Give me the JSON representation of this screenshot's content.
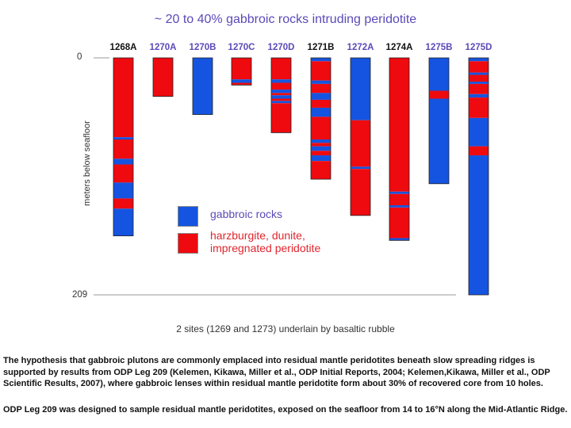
{
  "title": "~ 20 to 40% gabbroic rocks intruding peridotite",
  "y_axis": {
    "title": "meters below seafloor",
    "top_label": "0",
    "bottom_label": "209",
    "min": 0,
    "max": 209
  },
  "colors": {
    "gabbro": "#1554e0",
    "peridotite": "#ee0a0f",
    "purple_label": "#5a4ab8",
    "black_label": "#111111"
  },
  "holes": [
    {
      "name": "1268A",
      "label_color": "#111111",
      "depth": 157,
      "segments": [
        {
          "t": "p",
          "from": 0,
          "to": 70
        },
        {
          "t": "g",
          "from": 70,
          "to": 72
        },
        {
          "t": "p",
          "from": 72,
          "to": 89
        },
        {
          "t": "g",
          "from": 89,
          "to": 94
        },
        {
          "t": "p",
          "from": 94,
          "to": 110
        },
        {
          "t": "g",
          "from": 110,
          "to": 124
        },
        {
          "t": "p",
          "from": 124,
          "to": 133
        },
        {
          "t": "g",
          "from": 133,
          "to": 157
        }
      ]
    },
    {
      "name": "1270A",
      "label_color": "#5a4ab8",
      "depth": 34,
      "segments": [
        {
          "t": "p",
          "from": 0,
          "to": 34
        }
      ]
    },
    {
      "name": "1270B",
      "label_color": "#5a4ab8",
      "depth": 50,
      "segments": [
        {
          "t": "g",
          "from": 0,
          "to": 50
        }
      ]
    },
    {
      "name": "1270C",
      "label_color": "#5a4ab8",
      "depth": 24,
      "segments": [
        {
          "t": "p",
          "from": 0,
          "to": 19
        },
        {
          "t": "g",
          "from": 19,
          "to": 22
        },
        {
          "t": "p",
          "from": 22,
          "to": 24
        }
      ]
    },
    {
      "name": "1270D",
      "label_color": "#5a4ab8",
      "depth": 66,
      "segments": [
        {
          "t": "p",
          "from": 0,
          "to": 19
        },
        {
          "t": "g",
          "from": 19,
          "to": 22
        },
        {
          "t": "p",
          "from": 22,
          "to": 28
        },
        {
          "t": "g",
          "from": 28,
          "to": 31
        },
        {
          "t": "p",
          "from": 31,
          "to": 33
        },
        {
          "t": "g",
          "from": 33,
          "to": 36
        },
        {
          "t": "p",
          "from": 36,
          "to": 38
        },
        {
          "t": "g",
          "from": 38,
          "to": 40
        },
        {
          "t": "p",
          "from": 40,
          "to": 66
        }
      ]
    },
    {
      "name": "1271B",
      "label_color": "#111111",
      "depth": 107,
      "segments": [
        {
          "t": "g",
          "from": 0,
          "to": 3
        },
        {
          "t": "p",
          "from": 3,
          "to": 20
        },
        {
          "t": "g",
          "from": 20,
          "to": 23
        },
        {
          "t": "p",
          "from": 23,
          "to": 31
        },
        {
          "t": "g",
          "from": 31,
          "to": 37
        },
        {
          "t": "p",
          "from": 37,
          "to": 44
        },
        {
          "t": "g",
          "from": 44,
          "to": 52
        },
        {
          "t": "p",
          "from": 52,
          "to": 72
        },
        {
          "t": "g",
          "from": 72,
          "to": 75
        },
        {
          "t": "p",
          "from": 75,
          "to": 78
        },
        {
          "t": "g",
          "from": 78,
          "to": 82
        },
        {
          "t": "p",
          "from": 82,
          "to": 86
        },
        {
          "t": "g",
          "from": 86,
          "to": 91
        },
        {
          "t": "p",
          "from": 91,
          "to": 107
        }
      ]
    },
    {
      "name": "1272A",
      "label_color": "#5a4ab8",
      "depth": 139,
      "segments": [
        {
          "t": "g",
          "from": 0,
          "to": 55
        },
        {
          "t": "p",
          "from": 55,
          "to": 96
        },
        {
          "t": "g",
          "from": 96,
          "to": 98
        },
        {
          "t": "p",
          "from": 98,
          "to": 139
        }
      ]
    },
    {
      "name": "1274A",
      "label_color": "#111111",
      "depth": 161,
      "segments": [
        {
          "t": "p",
          "from": 0,
          "to": 118
        },
        {
          "t": "g",
          "from": 118,
          "to": 120
        },
        {
          "t": "p",
          "from": 120,
          "to": 130
        },
        {
          "t": "g",
          "from": 130,
          "to": 132
        },
        {
          "t": "p",
          "from": 132,
          "to": 159
        },
        {
          "t": "g",
          "from": 159,
          "to": 161
        }
      ]
    },
    {
      "name": "1275B",
      "label_color": "#5a4ab8",
      "depth": 111,
      "segments": [
        {
          "t": "g",
          "from": 0,
          "to": 29
        },
        {
          "t": "p",
          "from": 29,
          "to": 36
        },
        {
          "t": "g",
          "from": 36,
          "to": 111
        }
      ]
    },
    {
      "name": "1275D",
      "label_color": "#5a4ab8",
      "depth": 209,
      "segments": [
        {
          "t": "g",
          "from": 0,
          "to": 3
        },
        {
          "t": "p",
          "from": 3,
          "to": 13
        },
        {
          "t": "g",
          "from": 13,
          "to": 15
        },
        {
          "t": "p",
          "from": 15,
          "to": 21
        },
        {
          "t": "g",
          "from": 21,
          "to": 23
        },
        {
          "t": "p",
          "from": 23,
          "to": 32
        },
        {
          "t": "g",
          "from": 32,
          "to": 35
        },
        {
          "t": "p",
          "from": 35,
          "to": 53
        },
        {
          "t": "g",
          "from": 53,
          "to": 78
        },
        {
          "t": "p",
          "from": 78,
          "to": 86
        },
        {
          "t": "g",
          "from": 86,
          "to": 209
        }
      ]
    }
  ],
  "legend": {
    "gabbro_label": "gabbroic rocks",
    "peridotite_label_line1": "harzburgite, dunite,",
    "peridotite_label_line2": "impregnated peridotite"
  },
  "footnote": "2 sites (1269 and 1273) underlain by basaltic rubble",
  "caption": {
    "paragraph1": "The hypothesis that gabbroic plutons are commonly emplaced into residual mantle peridotites beneath slow spreading ridges is supported by results from ODP Leg 209 (Kelemen, Kikawa, Miller et al., ODP Initial Reports, 2004; Kelemen,Kikawa, Miller et al., ODP Scientific Results, 2007), where gabbroic lenses within residual mantle peridotite form about 30% of recovered core from 10 holes.",
    "paragraph2": "ODP Leg 209 was designed to sample residual mantle peridotites, exposed on the seafloor from 14 to 16°N along the Mid-Atlantic Ridge."
  }
}
